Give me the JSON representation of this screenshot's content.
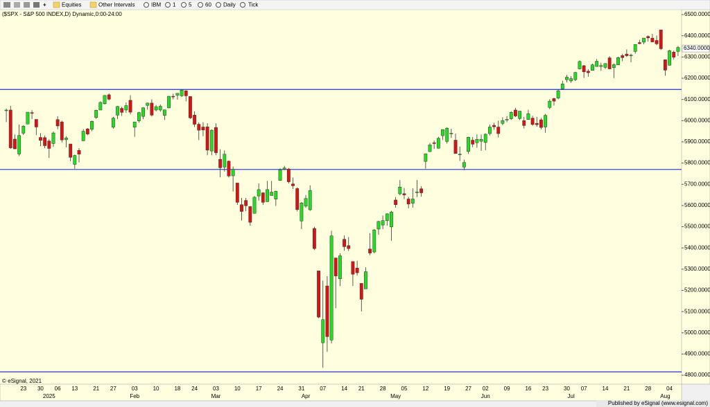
{
  "toolbar": {
    "items": [
      "Equities",
      "Other Intervals",
      "IBM",
      "1",
      "5",
      "60",
      "Daily",
      "Tick"
    ]
  },
  "chart_data": {
    "type": "candlestick",
    "title": "($SPX - S&P 500 INDEX,D) Dynamic,0:00-24:00",
    "copyright": "© eSignal, 2021",
    "footer": "Published by eSignal (www.esignal.com)",
    "categories": [
      null,
      null,
      null,
      null,
      "23",
      null,
      null,
      null,
      "30",
      null,
      null,
      null,
      "06",
      null,
      null,
      null,
      "13",
      null,
      null,
      null,
      null,
      "21",
      null,
      null,
      null,
      "27",
      null,
      null,
      null,
      null,
      "03",
      null,
      null,
      null,
      null,
      "10",
      null,
      null,
      null,
      null,
      "18",
      null,
      null,
      null,
      "24",
      null,
      null,
      null,
      null,
      "03",
      null,
      null,
      null,
      null,
      "10",
      null,
      null,
      null,
      null,
      "17",
      null,
      null,
      null,
      null,
      "24",
      null,
      null,
      null,
      null,
      "31",
      null,
      null,
      null,
      null,
      "07",
      null,
      null,
      null,
      null,
      "14",
      null,
      null,
      null,
      "21",
      null,
      null,
      null,
      null,
      "28",
      null,
      null,
      null,
      null,
      "05",
      null,
      null,
      null,
      null,
      "12",
      null,
      null,
      null,
      null,
      "19",
      null,
      null,
      null,
      null,
      "27",
      null,
      null,
      null,
      "02",
      null,
      null,
      null,
      null,
      "09",
      null,
      null,
      null,
      null,
      "16",
      null,
      null,
      null,
      "23",
      null,
      null,
      null,
      null,
      "30",
      null,
      null,
      null,
      "07",
      null,
      null,
      null,
      null,
      "14",
      null,
      null,
      null,
      null,
      "21",
      null,
      null,
      null,
      null,
      "28",
      null,
      null,
      null,
      null,
      "04",
      null,
      null
    ],
    "month_labels": [
      null,
      null,
      null,
      null,
      null,
      null,
      null,
      null,
      null,
      null,
      "2025",
      null,
      null,
      null,
      null,
      null,
      null,
      null,
      null,
      null,
      null,
      null,
      null,
      null,
      null,
      null,
      null,
      null,
      null,
      null,
      "Feb",
      null,
      null,
      null,
      null,
      null,
      null,
      null,
      null,
      null,
      null,
      null,
      null,
      null,
      null,
      null,
      null,
      null,
      null,
      "Mar",
      null,
      null,
      null,
      null,
      null,
      null,
      null,
      null,
      null,
      null,
      null,
      null,
      null,
      null,
      null,
      null,
      null,
      null,
      null,
      null,
      "Apr",
      null,
      null,
      null,
      null,
      null,
      null,
      null,
      null,
      null,
      null,
      null,
      null,
      null,
      null,
      null,
      null,
      null,
      null,
      null,
      null,
      "May",
      null,
      null,
      null,
      null,
      null,
      null,
      null,
      null,
      null,
      null,
      null,
      null,
      null,
      null,
      null,
      null,
      null,
      null,
      null,
      null,
      "Jun",
      null,
      null,
      null,
      null,
      null,
      null,
      null,
      null,
      null,
      null,
      null,
      null,
      null,
      null,
      null,
      null,
      null,
      null,
      null,
      "Jul",
      null,
      null,
      null,
      null,
      null,
      null,
      null,
      null,
      null,
      null,
      null,
      null,
      null,
      null,
      null,
      null,
      null,
      null,
      null,
      null,
      null,
      "Aug",
      null,
      null,
      null
    ],
    "open": [
      6047,
      6050,
      5913,
      5843,
      5941,
      5984,
      6038,
      6006,
      5921,
      5920,
      5904,
      5892,
      6005,
      5994,
      5910,
      5890,
      5794,
      5860,
      5905,
      5961,
      5959,
      6015,
      6050,
      6080,
      6122,
      5969,
      6026,
      6058,
      6050,
      6096,
      5969,
      5999,
      6020,
      6072,
      6083,
      6050,
      6050,
      6025,
      6060,
      6115,
      6120,
      6117,
      6141,
      6114,
      6026,
      5983,
      5970,
      5971,
      5857,
      5968,
      5818,
      5781,
      5809,
      5740,
      5706,
      5604,
      5624,
      5595,
      5563,
      5645,
      5660,
      5618,
      5647,
      5630,
      5718,
      5771,
      5772,
      5702,
      5680,
      5527,
      5597,
      5580,
      5492,
      5292,
      4953,
      5221,
      4966,
      5353,
      5255,
      5441,
      5411,
      5336,
      5305,
      5233,
      5207,
      5395,
      5381,
      5489,
      5508,
      5529,
      5499,
      5626,
      5655,
      5656,
      5631,
      5611,
      5663,
      5679,
      5808,
      5854,
      5896,
      5870,
      5929,
      5902,
      5941,
      5908,
      5841,
      5781,
      5855,
      5908,
      5896,
      5903,
      5897,
      5939,
      5978,
      5970,
      5987,
      6005,
      6009,
      6050,
      6010,
      6000,
      6005,
      6012,
      5987,
      6004,
      5970,
      6062,
      6104,
      6106,
      6150,
      6193,
      6187,
      6193,
      6244,
      6259,
      6233,
      6237,
      6255,
      6255,
      6251,
      6296,
      6250,
      6263,
      6307,
      6314,
      6306,
      6326,
      6368,
      6370,
      6397,
      6389,
      6378,
      6428,
      6287,
      6261,
      6323,
      6326
    ],
    "high": [
      6057,
      6070,
      5935,
      5982,
      5978,
      6040,
      6049,
      6006,
      5941,
      5930,
      5912,
      5949,
      6021,
      6000,
      5927,
      5890,
      5840,
      5871,
      5960,
      5965,
      6000,
      6052,
      6091,
      6119,
      6128,
      6018,
      6069,
      6066,
      6086,
      6120,
      5994,
      6042,
      6062,
      6085,
      6101,
      6074,
      6076,
      6052,
      6116,
      6127,
      6129,
      6147,
      6143,
      6115,
      6044,
      5992,
      5993,
      5988,
      5959,
      5987,
      5865,
      5860,
      5812,
      5784,
      5706,
      5636,
      5636,
      5597,
      5645,
      5704,
      5662,
      5716,
      5716,
      5670,
      5775,
      5787,
      5777,
      5732,
      5686,
      5616,
      5650,
      5695,
      5500,
      5292,
      5246,
      5267,
      5481,
      5353,
      5375,
      5459,
      5451,
      5336,
      5340,
      5233,
      5309,
      5470,
      5490,
      5528,
      5553,
      5563,
      5575,
      5640,
      5720,
      5683,
      5641,
      5681,
      5720,
      5691,
      5845,
      5895,
      5906,
      5924,
      5959,
      5969,
      5962,
      5939,
      5878,
      5816,
      5924,
      5923,
      5935,
      5935,
      5940,
      5982,
      5990,
      6000,
      6016,
      6022,
      6044,
      6060,
      6046,
      6018,
      6051,
      6023,
      6018,
      6013,
      6032,
      6101,
      6108,
      6146,
      6188,
      6216,
      6210,
      6230,
      6284,
      6262,
      6243,
      6269,
      6291,
      6273,
      6271,
      6304,
      6270,
      6301,
      6315,
      6336,
      6316,
      6360,
      6381,
      6390,
      6402,
      6409,
      6401,
      6427,
      6288,
      6334,
      6330,
      6352
    ],
    "low": [
      5993,
      5867,
      5866,
      5833,
      5932,
      5984,
      6007,
      5932,
      5880,
      5870,
      5824,
      5876,
      5960,
      5897,
      5874,
      5809,
      5773,
      5803,
      5904,
      5931,
      5950,
      6008,
      6050,
      6076,
      6095,
      5962,
      6008,
      6022,
      6037,
      6030,
      5924,
      5990,
      6007,
      6052,
      6020,
      6044,
      6042,
      6003,
      6059,
      6100,
      6099,
      6111,
      6091,
      6008,
      5970,
      5908,
      5927,
      5837,
      5837,
      5837,
      5733,
      5760,
      5732,
      5666,
      5603,
      5529,
      5573,
      5505,
      5563,
      5623,
      5603,
      5617,
      5650,
      5598,
      5718,
      5767,
      5704,
      5678,
      5572,
      5489,
      5589,
      5575,
      5390,
      5069,
      4835,
      4910,
      4950,
      5116,
      5220,
      5387,
      5386,
      5220,
      5270,
      5101,
      5207,
      5366,
      5375,
      5462,
      5489,
      5505,
      5434,
      5590,
      5648,
      5630,
      5587,
      5590,
      5640,
      5642,
      5774,
      5852,
      5867,
      5868,
      5909,
      5892,
      5919,
      5845,
      5810,
      5767,
      5843,
      5875,
      5872,
      5858,
      5861,
      5930,
      5957,
      5921,
      5978,
      5993,
      6003,
      6017,
      6003,
      5963,
      6005,
      5976,
      5971,
      5959,
      5943,
      6054,
      6071,
      6101,
      6146,
      6180,
      6178,
      6187,
      6241,
      6201,
      6207,
      6237,
      6255,
      6235,
      6244,
      6243,
      6201,
      6263,
      6280,
      6300,
      6275,
      6316,
      6360,
      6360,
      6373,
      6371,
      6356,
      6333,
      6212,
      6260,
      6288,
      6305
    ],
    "close": [
      6050,
      5872,
      5867,
      5930,
      5974,
      6040,
      6037,
      5970,
      5907,
      5882,
      5869,
      5942,
      5975,
      5909,
      5918,
      5827,
      5836,
      5842,
      5950,
      5937,
      5997,
      6049,
      6086,
      6119,
      6101,
      6012,
      6067,
      6039,
      6071,
      6040,
      5994,
      6038,
      6061,
      6083,
      6026,
      6066,
      6068,
      6051,
      6115,
      6114,
      6129,
      6144,
      6117,
      6013,
      5983,
      5955,
      5956,
      5861,
      5955,
      5849,
      5778,
      5842,
      5739,
      5770,
      5615,
      5572,
      5599,
      5521,
      5639,
      5675,
      5615,
      5675,
      5663,
      5667,
      5768,
      5777,
      5712,
      5693,
      5581,
      5612,
      5633,
      5671,
      5397,
      5074,
      5062,
      4982,
      5457,
      5268,
      5363,
      5406,
      5397,
      5276,
      5283,
      5158,
      5288,
      5376,
      5485,
      5525,
      5529,
      5561,
      5569,
      5604,
      5687,
      5650,
      5607,
      5631,
      5664,
      5660,
      5844,
      5886,
      5892,
      5917,
      5958,
      5964,
      5941,
      5845,
      5842,
      5803,
      5922,
      5889,
      5912,
      5912,
      5936,
      5970,
      5971,
      5939,
      6000,
      6006,
      6039,
      6022,
      6045,
      5977,
      6033,
      5982,
      5981,
      5968,
      6025,
      6092,
      6092,
      6141,
      6173,
      6205,
      6198,
      6227,
      6279,
      6230,
      6226,
      6263,
      6280,
      6260,
      6269,
      6244,
      6264,
      6297,
      6297,
      6306,
      6309,
      6359,
      6363,
      6389,
      6390,
      6371,
      6362,
      6339,
      6238,
      6330,
      6299,
      6345
    ],
    "up_color": "#22dd22",
    "down_color": "#dd1111",
    "hlines": [
      6147,
      5770,
      4816
    ],
    "hline_color": "#2233cc",
    "last_price": {
      "value": 6340,
      "label": "6340.0000"
    },
    "ylim": [
      4758,
      6523
    ],
    "yticks": [
      {
        "value": 4800,
        "label": "4800.0000"
      },
      {
        "value": 4900,
        "label": "4900.0000"
      },
      {
        "value": 5000,
        "label": "5000.0000"
      },
      {
        "value": 5100,
        "label": "5100.0000"
      },
      {
        "value": 5200,
        "label": "5200.0000"
      },
      {
        "value": 5300,
        "label": "5300.0000"
      },
      {
        "value": 5400,
        "label": "5400.0000"
      },
      {
        "value": 5500,
        "label": "5500.0000"
      },
      {
        "value": 5600,
        "label": "5600.0000"
      },
      {
        "value": 5700,
        "label": "5700.0000"
      },
      {
        "value": 5800,
        "label": "5800.0000"
      },
      {
        "value": 5900,
        "label": "5900.0000"
      },
      {
        "value": 6000,
        "label": "6000.0000"
      },
      {
        "value": 6100,
        "label": "6100.0000"
      },
      {
        "value": 6200,
        "label": "6200.0000"
      },
      {
        "value": 6300,
        "label": "6300.0000"
      },
      {
        "value": 6400,
        "label": "6400.0000"
      },
      {
        "value": 6500,
        "label": "6500.0000"
      }
    ]
  }
}
